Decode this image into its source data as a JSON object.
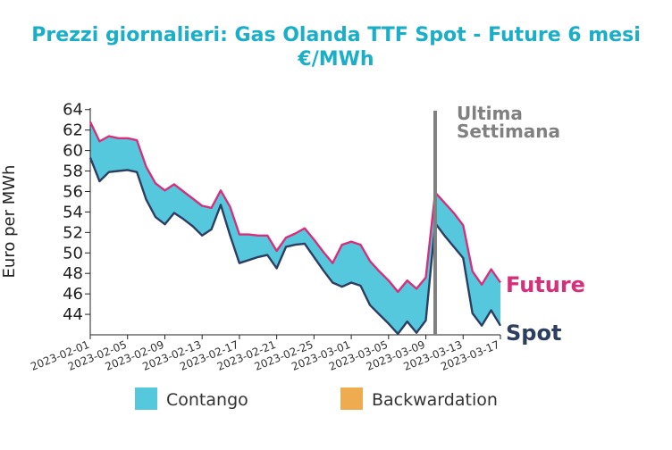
{
  "chart_data": {
    "type": "area",
    "title_line1": "Prezzi giornalieri: Gas Olanda TTF Spot - Future 6 mesi",
    "title_line2": "€/MWh",
    "ylabel": "Euro per MWh",
    "ylim": [
      42,
      64.5
    ],
    "yticks": [
      44,
      46,
      48,
      50,
      52,
      54,
      56,
      58,
      60,
      62,
      64
    ],
    "x_start": "2023-02-01",
    "x_end": "2023-03-17",
    "xtick_labels": [
      "2023-02-01",
      "2023-02-05",
      "2023-02-09",
      "2023-02-13",
      "2023-02-17",
      "2023-02-21",
      "2023-02-25",
      "2023-03-01",
      "2023-03-05",
      "2023-03-09",
      "2023-03-13",
      "2023-03-17"
    ],
    "annotation_date": "2023-03-10",
    "annotation_text_line1": "Ultima",
    "annotation_text_line2": "Settimana",
    "colors": {
      "title": "#1aaec8",
      "future": "#d6307a",
      "spot": "#2d3e63",
      "contango": "#56c8de",
      "backwardation": "#eeab4f",
      "annotation": "#808080"
    },
    "series": [
      {
        "name": "Future",
        "x": [
          "2023-02-01",
          "2023-02-02",
          "2023-02-03",
          "2023-02-04",
          "2023-02-05",
          "2023-02-06",
          "2023-02-07",
          "2023-02-08",
          "2023-02-09",
          "2023-02-10",
          "2023-02-11",
          "2023-02-12",
          "2023-02-13",
          "2023-02-14",
          "2023-02-15",
          "2023-02-16",
          "2023-02-17",
          "2023-02-18",
          "2023-02-19",
          "2023-02-20",
          "2023-02-21",
          "2023-02-22",
          "2023-02-23",
          "2023-02-24",
          "2023-02-25",
          "2023-02-26",
          "2023-02-27",
          "2023-02-28",
          "2023-03-01",
          "2023-03-02",
          "2023-03-03",
          "2023-03-04",
          "2023-03-05",
          "2023-03-06",
          "2023-03-07",
          "2023-03-08",
          "2023-03-09",
          "2023-03-10",
          "2023-03-11",
          "2023-03-12",
          "2023-03-13",
          "2023-03-14",
          "2023-03-15",
          "2023-03-16",
          "2023-03-17"
        ],
        "values": [
          62.8,
          60.9,
          61.4,
          61.2,
          61.2,
          61.0,
          58.4,
          56.8,
          56.1,
          56.7,
          56.0,
          55.3,
          54.6,
          54.4,
          56.1,
          54.5,
          51.8,
          51.8,
          51.7,
          51.7,
          50.2,
          51.5,
          51.9,
          52.4,
          51.3,
          50.1,
          49.0,
          50.8,
          51.1,
          50.8,
          49.2,
          48.2,
          47.3,
          46.2,
          47.3,
          46.5,
          47.6,
          55.9,
          54.9,
          53.9,
          52.7,
          48.2,
          46.9,
          48.4,
          47.1
        ]
      },
      {
        "name": "Spot",
        "x": [
          "2023-02-01",
          "2023-02-02",
          "2023-02-03",
          "2023-02-04",
          "2023-02-05",
          "2023-02-06",
          "2023-02-07",
          "2023-02-08",
          "2023-02-09",
          "2023-02-10",
          "2023-02-11",
          "2023-02-12",
          "2023-02-13",
          "2023-02-14",
          "2023-02-15",
          "2023-02-16",
          "2023-02-17",
          "2023-02-18",
          "2023-02-19",
          "2023-02-20",
          "2023-02-21",
          "2023-02-22",
          "2023-02-23",
          "2023-02-24",
          "2023-02-25",
          "2023-02-26",
          "2023-02-27",
          "2023-02-28",
          "2023-03-01",
          "2023-03-02",
          "2023-03-03",
          "2023-03-04",
          "2023-03-05",
          "2023-03-06",
          "2023-03-07",
          "2023-03-08",
          "2023-03-09",
          "2023-03-10",
          "2023-03-11",
          "2023-03-12",
          "2023-03-13",
          "2023-03-14",
          "2023-03-15",
          "2023-03-16",
          "2023-03-17"
        ],
        "values": [
          59.3,
          57.0,
          57.9,
          58.0,
          58.1,
          57.9,
          55.2,
          53.5,
          52.8,
          53.9,
          53.3,
          52.6,
          51.7,
          52.3,
          54.7,
          51.7,
          49.0,
          49.3,
          49.6,
          49.8,
          48.5,
          50.6,
          50.8,
          50.9,
          49.6,
          48.3,
          47.1,
          46.7,
          47.1,
          46.8,
          44.9,
          44.0,
          43.1,
          42.1,
          43.3,
          42.2,
          43.4,
          52.9,
          51.7,
          50.6,
          49.5,
          44.1,
          42.9,
          44.4,
          42.9
        ]
      }
    ],
    "series_labels": {
      "future": "Future",
      "spot": "Spot"
    },
    "legend": {
      "placement": "bottom",
      "items": [
        "Contango",
        "Backwardation"
      ]
    },
    "grid": false
  }
}
